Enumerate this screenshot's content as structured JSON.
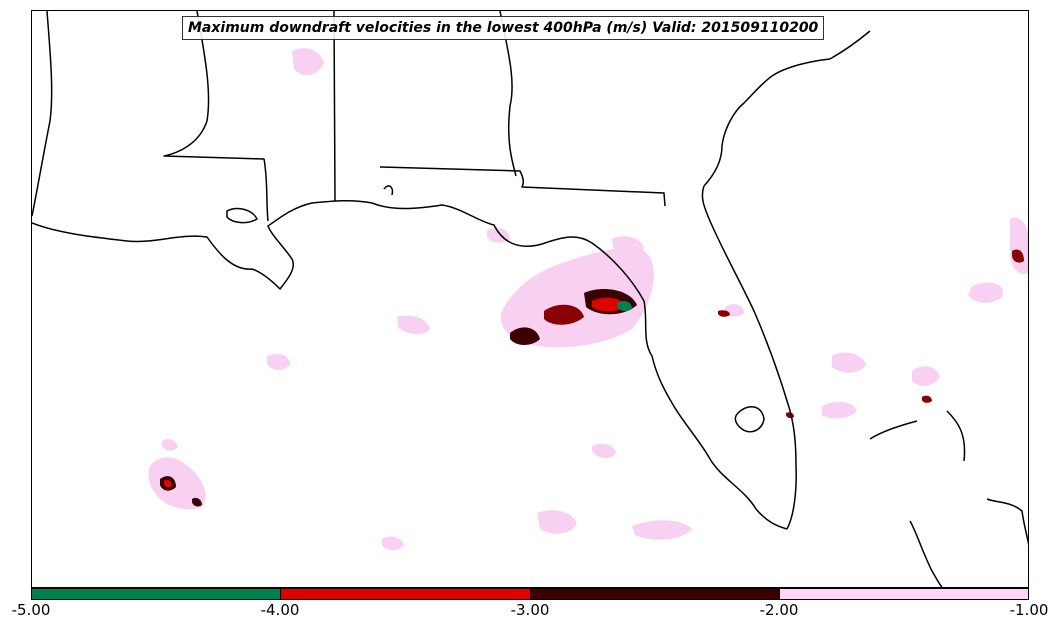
{
  "title": "Maximum downdraft velocities in the lowest 400hPa (m/s) Valid: 201509110200",
  "colorbar": {
    "segments": [
      {
        "range": [
          -5.0,
          -4.0
        ],
        "color": "#007f4f"
      },
      {
        "range": [
          -4.0,
          -3.0
        ],
        "color": "#e00000"
      },
      {
        "range": [
          -3.0,
          -2.0
        ],
        "color": "#3d0000"
      },
      {
        "range": [
          -2.0,
          -1.0
        ],
        "color": "#ffd6f5"
      }
    ],
    "tick_labels": [
      "-5.00",
      "-4.00",
      "-3.00",
      "-2.00",
      "-1.00"
    ]
  },
  "colors": {
    "coastline": "#000000",
    "background": "#ffffff",
    "weak_downdraft": "#f7c8f0"
  }
}
